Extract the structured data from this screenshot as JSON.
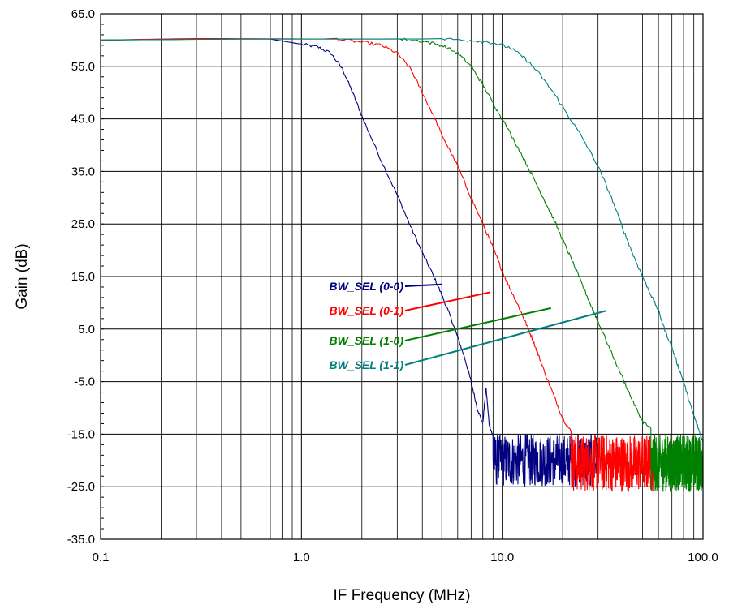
{
  "chart_data": {
    "type": "line",
    "xscale": "log",
    "xlabel": "IF Frequency (MHz)",
    "ylabel": "Gain (dB)",
    "xlim": [
      0.1,
      100.0
    ],
    "ylim": [
      -35.0,
      65.0
    ],
    "x_ticks": [
      "0.1",
      "1.0",
      "10.0",
      "100.0"
    ],
    "y_ticks": [
      "65.0",
      "55.0",
      "45.0",
      "35.0",
      "25.0",
      "15.0",
      "5.0",
      "-5.0",
      "-15.0",
      "-25.0",
      "-35.0"
    ],
    "grid": true,
    "series": [
      {
        "name": "BW_SEL (0-0)",
        "color": "#000080",
        "points": [
          [
            0.1,
            60.0
          ],
          [
            0.3,
            60.2
          ],
          [
            0.7,
            60.2
          ],
          [
            1.0,
            59.2
          ],
          [
            1.2,
            58.7
          ],
          [
            1.4,
            57.5
          ],
          [
            1.6,
            54.5
          ],
          [
            1.8,
            50.0
          ],
          [
            2.0,
            45.5
          ],
          [
            2.5,
            37.0
          ],
          [
            3.0,
            30.5
          ],
          [
            3.5,
            24.5
          ],
          [
            4.0,
            19.5
          ],
          [
            4.5,
            15.5
          ],
          [
            5.0,
            11.5
          ],
          [
            5.5,
            7.5
          ],
          [
            6.0,
            3.5
          ],
          [
            6.5,
            -0.5
          ],
          [
            7.0,
            -5.0
          ],
          [
            7.5,
            -10.0
          ],
          [
            8.0,
            -13.0
          ],
          [
            8.3,
            -6.0
          ],
          [
            8.6,
            -13.0
          ],
          [
            9.0,
            -15.5
          ]
        ],
        "noise_floor": {
          "from": 9.0,
          "to": 30.0,
          "range": [
            -25.0,
            -15.0
          ]
        }
      },
      {
        "name": "BW_SEL (0-1)",
        "color": "#ff0000",
        "points": [
          [
            0.1,
            60.0
          ],
          [
            0.3,
            60.3
          ],
          [
            1.5,
            60.2
          ],
          [
            2.0,
            59.6
          ],
          [
            2.5,
            59.0
          ],
          [
            3.0,
            57.5
          ],
          [
            3.5,
            54.5
          ],
          [
            4.0,
            50.0
          ],
          [
            4.5,
            46.0
          ],
          [
            5.0,
            42.0
          ],
          [
            6.0,
            36.0
          ],
          [
            7.0,
            30.0
          ],
          [
            8.0,
            25.0
          ],
          [
            9.0,
            20.5
          ],
          [
            10.0,
            16.0
          ],
          [
            11.0,
            12.5
          ],
          [
            12.0,
            9.5
          ],
          [
            13.0,
            6.5
          ],
          [
            14.0,
            3.5
          ],
          [
            15.0,
            0.5
          ],
          [
            16.0,
            -2.5
          ],
          [
            18.0,
            -7.5
          ],
          [
            20.0,
            -12.0
          ],
          [
            22.0,
            -14.5
          ]
        ],
        "noise_floor": {
          "from": 22.0,
          "to": 58.0,
          "range": [
            -26.0,
            -15.0
          ]
        }
      },
      {
        "name": "BW_SEL (1-0)",
        "color": "#008000",
        "points": [
          [
            0.1,
            60.0
          ],
          [
            0.5,
            60.2
          ],
          [
            3.0,
            60.2
          ],
          [
            4.0,
            59.8
          ],
          [
            5.0,
            59.0
          ],
          [
            6.0,
            57.5
          ],
          [
            7.0,
            55.0
          ],
          [
            8.0,
            51.5
          ],
          [
            9.0,
            48.0
          ],
          [
            10.0,
            45.0
          ],
          [
            12.0,
            39.5
          ],
          [
            14.0,
            34.5
          ],
          [
            16.0,
            30.0
          ],
          [
            18.0,
            26.0
          ],
          [
            20.0,
            22.0
          ],
          [
            22.0,
            18.5
          ],
          [
            25.0,
            13.5
          ],
          [
            28.0,
            9.0
          ],
          [
            30.0,
            6.5
          ],
          [
            35.0,
            0.5
          ],
          [
            40.0,
            -4.5
          ],
          [
            45.0,
            -9.0
          ],
          [
            50.0,
            -12.5
          ],
          [
            55.0,
            -14.0
          ]
        ],
        "noise_floor": {
          "from": 55.0,
          "to": 100.0,
          "range": [
            -26.0,
            -15.0
          ]
        }
      },
      {
        "name": "BW_SEL (1-1)",
        "color": "#008080",
        "points": [
          [
            0.1,
            60.0
          ],
          [
            0.5,
            60.2
          ],
          [
            5.0,
            60.2
          ],
          [
            7.0,
            60.0
          ],
          [
            9.0,
            59.5
          ],
          [
            11.0,
            58.5
          ],
          [
            13.0,
            56.5
          ],
          [
            15.0,
            54.0
          ],
          [
            18.0,
            50.0
          ],
          [
            21.0,
            46.0
          ],
          [
            25.0,
            41.5
          ],
          [
            30.0,
            36.0
          ],
          [
            35.0,
            30.0
          ],
          [
            40.0,
            24.0
          ],
          [
            45.0,
            19.0
          ],
          [
            50.0,
            15.0
          ],
          [
            55.0,
            11.5
          ],
          [
            60.0,
            8.5
          ],
          [
            65.0,
            4.5
          ],
          [
            70.0,
            1.5
          ],
          [
            75.0,
            -2.0
          ],
          [
            80.0,
            -5.0
          ],
          [
            85.0,
            -8.5
          ],
          [
            90.0,
            -11.5
          ],
          [
            95.0,
            -14.0
          ],
          [
            100.0,
            -16.5
          ]
        ],
        "noise_floor": {
          "from": 100.0,
          "to": 100.0,
          "range": [
            -25.0,
            -15.0
          ]
        }
      }
    ],
    "legend": [
      {
        "label": "BW_SEL (0-0)",
        "color": "#000080",
        "pointer_to": [
          5.0,
          13.5
        ]
      },
      {
        "label": "BW_SEL (0-1)",
        "color": "#ff0000",
        "pointer_to": [
          8.7,
          12.0
        ]
      },
      {
        "label": "BW_SEL (1-0)",
        "color": "#008000",
        "pointer_to": [
          17.5,
          9.0
        ]
      },
      {
        "label": "BW_SEL (1-1)",
        "color": "#008080",
        "pointer_to": [
          33.0,
          8.5
        ]
      }
    ]
  }
}
